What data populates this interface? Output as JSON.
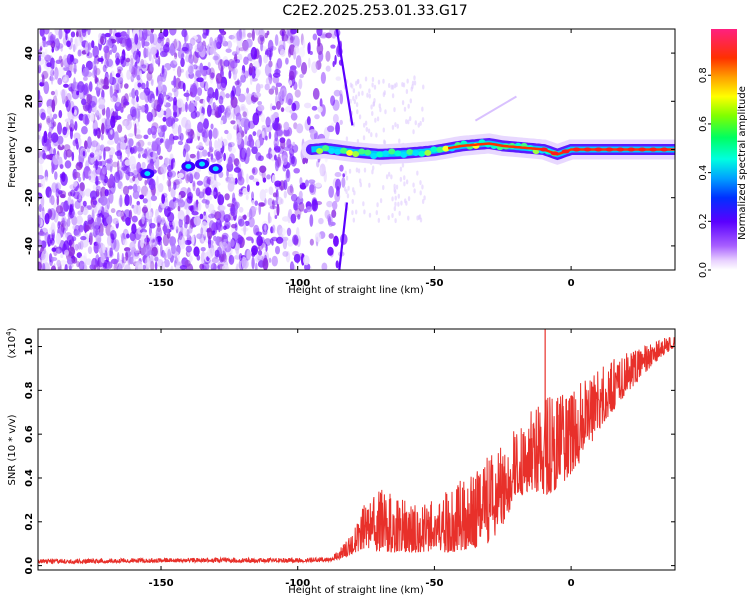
{
  "title": "C2E2.2025.253.01.33.G17",
  "chart_data": [
    {
      "type": "heatmap",
      "xlabel": "Height of straight line (km)",
      "ylabel": "Frequency (Hz)",
      "xlim": [
        -195,
        38
      ],
      "ylim": [
        -50,
        50
      ],
      "xticks": [
        -150,
        -100,
        -50,
        0
      ],
      "yticks": [
        -40,
        -20,
        0,
        20,
        40
      ],
      "colorbar": {
        "label": "Normalized spectral amplitude",
        "range": [
          0,
          0.99
        ],
        "ticks": [
          0.0,
          0.2,
          0.4,
          0.6,
          0.8
        ]
      },
      "ridge": {
        "x": [
          -95,
          -90,
          -80,
          -70,
          -60,
          -50,
          -45,
          -40,
          -35,
          -30,
          -25,
          -20,
          -15,
          -10,
          -5,
          0,
          10,
          20,
          30,
          38
        ],
        "y": [
          0,
          0.5,
          -1,
          -2,
          -1.5,
          -0.5,
          0.5,
          1.5,
          2,
          2.5,
          1.5,
          1,
          0.5,
          0,
          -2,
          0,
          0,
          0,
          0,
          0
        ]
      },
      "blobs": [
        {
          "x": -155,
          "y": -10
        },
        {
          "x": -140,
          "y": -7
        },
        {
          "x": -135,
          "y": -6
        },
        {
          "x": -130,
          "y": -8
        }
      ]
    },
    {
      "type": "line",
      "xlabel": "Height of straight line (km)",
      "ylabel": "SNR (10 * v/v)",
      "y_multiplier": "(x10",
      "y_multiplier_exp": "4",
      "y_multiplier_close": ")",
      "xlim": [
        -195,
        38
      ],
      "ylim": [
        -0.02,
        1.08
      ],
      "xticks": [
        -150,
        -100,
        -50,
        0
      ],
      "yticks": [
        0.0,
        0.2,
        0.4,
        0.6,
        0.8,
        1.0
      ],
      "line_color": "#e8302a",
      "envelope": {
        "x": [
          -195,
          -150,
          -100,
          -88,
          -85,
          -80,
          -75,
          -70,
          -60,
          -50,
          -45,
          -40,
          -35,
          -30,
          -25,
          -20,
          -15,
          -10,
          -5,
          0,
          5,
          10,
          20,
          30,
          38
        ],
        "base": [
          0.01,
          0.015,
          0.015,
          0.02,
          0.03,
          0.05,
          0.08,
          0.06,
          0.06,
          0.06,
          0.06,
          0.07,
          0.08,
          0.1,
          0.18,
          0.3,
          0.35,
          0.32,
          0.35,
          0.42,
          0.5,
          0.62,
          0.78,
          0.92,
          1.0
        ],
        "top": [
          0.03,
          0.035,
          0.035,
          0.04,
          0.07,
          0.15,
          0.3,
          0.35,
          0.3,
          0.3,
          0.35,
          0.4,
          0.45,
          0.5,
          0.55,
          0.65,
          0.7,
          0.8,
          0.8,
          0.78,
          0.86,
          0.92,
          0.97,
          1.02,
          1.06
        ]
      }
    }
  ]
}
